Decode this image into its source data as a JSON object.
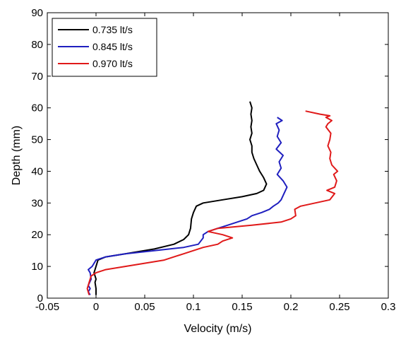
{
  "chart_data": {
    "type": "line",
    "title": "",
    "xlabel": "Velocity (m/s)",
    "ylabel": "Depth (mm)",
    "xlim": [
      -0.05,
      0.3
    ],
    "ylim": [
      0,
      90
    ],
    "xticks": [
      "-0.05",
      "0",
      "0.05",
      "0.1",
      "0.15",
      "0.2",
      "0.25",
      "0.3"
    ],
    "xtick_values": [
      -0.05,
      0,
      0.05,
      0.1,
      0.15,
      0.2,
      0.25,
      0.3
    ],
    "yticks": [
      "0",
      "10",
      "20",
      "30",
      "40",
      "50",
      "60",
      "70",
      "80",
      "90"
    ],
    "ytick_values": [
      0,
      10,
      20,
      30,
      40,
      50,
      60,
      70,
      80,
      90
    ],
    "grid": false,
    "legend_position": "top-left",
    "series": [
      {
        "name": "0.735 lt/s",
        "color": "#000000",
        "points": [
          [
            0.0,
            1
          ],
          [
            0.0,
            3
          ],
          [
            -0.001,
            5
          ],
          [
            0.0,
            6
          ],
          [
            -0.002,
            8
          ],
          [
            0.0,
            10
          ],
          [
            0.002,
            12
          ],
          [
            0.01,
            13
          ],
          [
            0.03,
            14
          ],
          [
            0.06,
            15.5
          ],
          [
            0.08,
            17
          ],
          [
            0.09,
            18.5
          ],
          [
            0.095,
            20
          ],
          [
            0.097,
            22
          ],
          [
            0.098,
            25
          ],
          [
            0.1,
            27
          ],
          [
            0.103,
            29
          ],
          [
            0.11,
            30
          ],
          [
            0.13,
            31
          ],
          [
            0.15,
            32
          ],
          [
            0.165,
            33
          ],
          [
            0.172,
            34
          ],
          [
            0.175,
            36
          ],
          [
            0.172,
            38
          ],
          [
            0.168,
            40
          ],
          [
            0.165,
            42
          ],
          [
            0.162,
            44
          ],
          [
            0.16,
            46
          ],
          [
            0.16,
            48
          ],
          [
            0.158,
            50
          ],
          [
            0.16,
            52
          ],
          [
            0.159,
            54
          ],
          [
            0.16,
            56
          ],
          [
            0.159,
            58
          ],
          [
            0.16,
            60
          ],
          [
            0.158,
            62
          ]
        ]
      },
      {
        "name": "0.845 lt/s",
        "color": "#1f1fbf",
        "points": [
          [
            -0.006,
            1
          ],
          [
            -0.008,
            2
          ],
          [
            -0.006,
            3
          ],
          [
            -0.008,
            4
          ],
          [
            -0.005,
            6
          ],
          [
            -0.006,
            8
          ],
          [
            -0.008,
            9
          ],
          [
            -0.004,
            10
          ],
          [
            0.0,
            12
          ],
          [
            0.01,
            13
          ],
          [
            0.03,
            14
          ],
          [
            0.06,
            15
          ],
          [
            0.09,
            16
          ],
          [
            0.105,
            17
          ],
          [
            0.11,
            19
          ],
          [
            0.11,
            20
          ],
          [
            0.115,
            21
          ],
          [
            0.125,
            22
          ],
          [
            0.135,
            23
          ],
          [
            0.145,
            24
          ],
          [
            0.155,
            25
          ],
          [
            0.16,
            26
          ],
          [
            0.17,
            27
          ],
          [
            0.178,
            28
          ],
          [
            0.182,
            29
          ],
          [
            0.187,
            30
          ],
          [
            0.19,
            31
          ],
          [
            0.193,
            33
          ],
          [
            0.196,
            35
          ],
          [
            0.192,
            37
          ],
          [
            0.186,
            39
          ],
          [
            0.19,
            41
          ],
          [
            0.188,
            43
          ],
          [
            0.192,
            45
          ],
          [
            0.185,
            47
          ],
          [
            0.19,
            49
          ],
          [
            0.186,
            51
          ],
          [
            0.188,
            53
          ],
          [
            0.185,
            55
          ],
          [
            0.191,
            56
          ],
          [
            0.186,
            57
          ]
        ]
      },
      {
        "name": "0.970 lt/s",
        "color": "#e01919",
        "points": [
          [
            -0.007,
            1
          ],
          [
            -0.009,
            3
          ],
          [
            -0.007,
            5
          ],
          [
            -0.005,
            7
          ],
          [
            0.0,
            8
          ],
          [
            0.01,
            9
          ],
          [
            0.03,
            10
          ],
          [
            0.05,
            11
          ],
          [
            0.07,
            12
          ],
          [
            0.08,
            13
          ],
          [
            0.09,
            14
          ],
          [
            0.1,
            15
          ],
          [
            0.11,
            16
          ],
          [
            0.125,
            17
          ],
          [
            0.13,
            18
          ],
          [
            0.14,
            19
          ],
          [
            0.13,
            20
          ],
          [
            0.115,
            21
          ],
          [
            0.125,
            22
          ],
          [
            0.16,
            23
          ],
          [
            0.19,
            24
          ],
          [
            0.2,
            25
          ],
          [
            0.205,
            26
          ],
          [
            0.204,
            28
          ],
          [
            0.21,
            29
          ],
          [
            0.24,
            31
          ],
          [
            0.245,
            33
          ],
          [
            0.237,
            34
          ],
          [
            0.245,
            35
          ],
          [
            0.247,
            37
          ],
          [
            0.244,
            39
          ],
          [
            0.248,
            40
          ],
          [
            0.242,
            42
          ],
          [
            0.24,
            44
          ],
          [
            0.241,
            46
          ],
          [
            0.238,
            48
          ],
          [
            0.24,
            50
          ],
          [
            0.241,
            52
          ],
          [
            0.236,
            54
          ],
          [
            0.238,
            55
          ],
          [
            0.242,
            56
          ],
          [
            0.236,
            57
          ],
          [
            0.24,
            57.5
          ],
          [
            0.23,
            58
          ],
          [
            0.215,
            59
          ]
        ]
      }
    ]
  }
}
